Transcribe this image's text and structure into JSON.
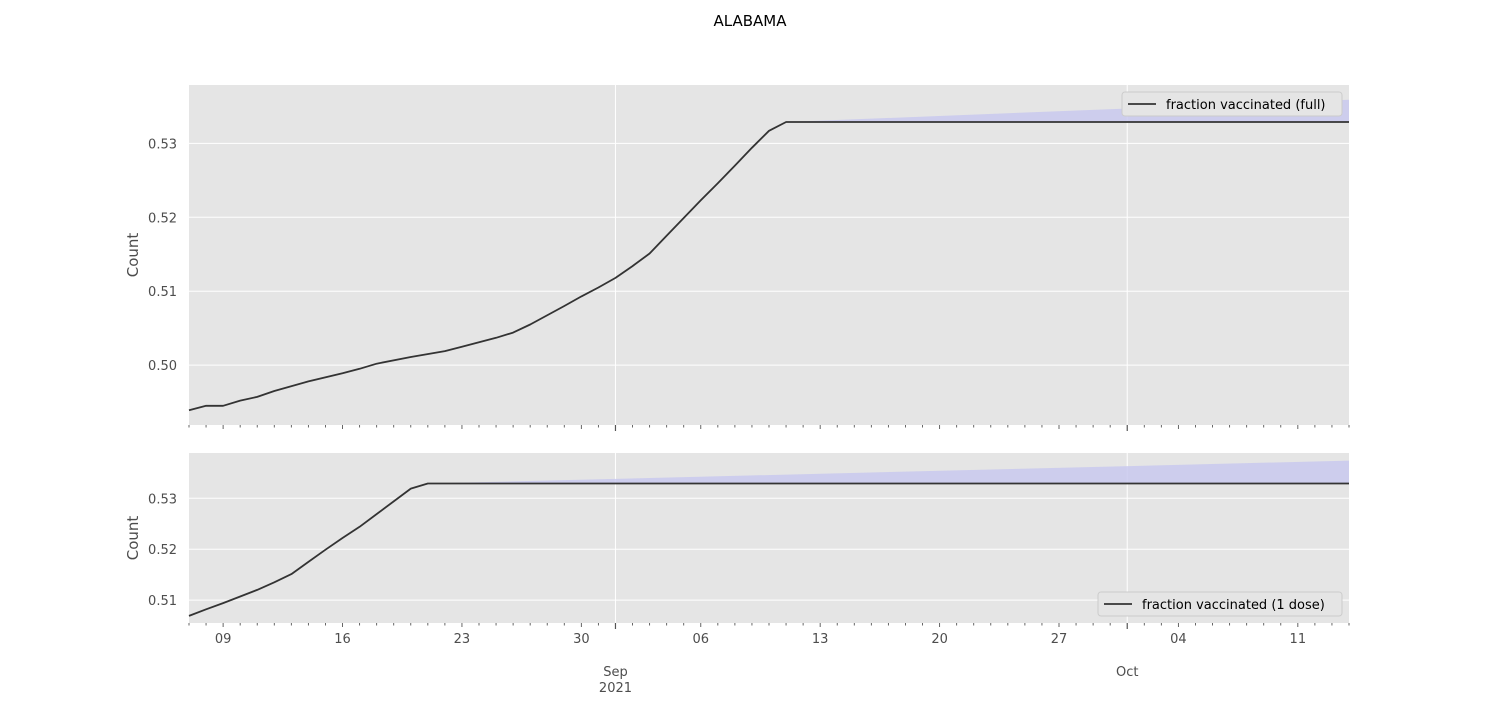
{
  "title": "ALABAMA",
  "colors": {
    "panel_background": "#e5e5e5",
    "grid": "#ffffff",
    "line": "#333333",
    "band": "#c9c9ee",
    "legend_background": "#e5e5e5",
    "legend_border": "#cccccc"
  },
  "chart_data": [
    {
      "type": "line",
      "ylabel": "Count",
      "ylim": [
        0.4919,
        0.5379
      ],
      "yticks": [
        0.5,
        0.51,
        0.52,
        0.53
      ],
      "ytick_labels": [
        "0.50",
        "0.51",
        "0.52",
        "0.53"
      ],
      "legend": {
        "entries": [
          "fraction vaccinated (full)"
        ],
        "placement": "top-right"
      },
      "grid": true,
      "series": [
        {
          "name": "fraction vaccinated (full)",
          "x": [
            "2021-08-07",
            "2021-08-08",
            "2021-08-09",
            "2021-08-10",
            "2021-08-11",
            "2021-08-12",
            "2021-08-14",
            "2021-08-16",
            "2021-08-17",
            "2021-08-18",
            "2021-08-20",
            "2021-08-22",
            "2021-08-23",
            "2021-08-24",
            "2021-08-25",
            "2021-08-26",
            "2021-08-27",
            "2021-08-29",
            "2021-08-30",
            "2021-08-31",
            "2021-09-01",
            "2021-09-02",
            "2021-09-03",
            "2021-09-04",
            "2021-09-05",
            "2021-09-06",
            "2021-09-07",
            "2021-09-08",
            "2021-09-09",
            "2021-09-10",
            "2021-09-11",
            "2021-10-14"
          ],
          "y": [
            0.4939,
            0.4945,
            0.4945,
            0.4952,
            0.4957,
            0.4965,
            0.4978,
            0.4989,
            0.4995,
            0.5002,
            0.5011,
            0.5019,
            0.5025,
            0.5031,
            0.5037,
            0.5044,
            0.5055,
            0.508,
            0.5093,
            0.5105,
            0.5118,
            0.5134,
            0.5151,
            0.5175,
            0.5199,
            0.5223,
            0.5246,
            0.527,
            0.5294,
            0.5317,
            0.5329,
            0.5329
          ]
        }
      ],
      "band": {
        "x": [
          "2021-09-11",
          "2021-10-14"
        ],
        "lower": [
          0.5329,
          0.5329
        ],
        "upper": [
          0.5329,
          0.5359
        ]
      }
    },
    {
      "type": "line",
      "ylabel": "Count",
      "ylim": [
        0.5055,
        0.5389
      ],
      "yticks": [
        0.51,
        0.52,
        0.53
      ],
      "ytick_labels": [
        "0.51",
        "0.52",
        "0.53"
      ],
      "legend": {
        "entries": [
          "fraction vaccinated (1 dose)"
        ],
        "placement": "bottom-right"
      },
      "grid": true,
      "series": [
        {
          "name": "fraction vaccinated (1 dose)",
          "x": [
            "2021-08-07",
            "2021-08-08",
            "2021-08-09",
            "2021-08-10",
            "2021-08-11",
            "2021-08-12",
            "2021-08-13",
            "2021-08-14",
            "2021-08-15",
            "2021-08-16",
            "2021-08-17",
            "2021-08-18",
            "2021-08-19",
            "2021-08-20",
            "2021-08-21",
            "2021-10-14"
          ],
          "y": [
            0.5069,
            0.5082,
            0.5094,
            0.5107,
            0.512,
            0.5135,
            0.5151,
            0.5175,
            0.5199,
            0.5222,
            0.5244,
            0.5269,
            0.5294,
            0.5319,
            0.5329,
            0.5329
          ]
        }
      ],
      "band": {
        "x": [
          "2021-08-21",
          "2021-10-14"
        ],
        "lower": [
          0.5329,
          0.5329
        ],
        "upper": [
          0.5329,
          0.5374
        ]
      }
    }
  ],
  "x_axis": {
    "range": [
      "2021-08-07",
      "2021-10-14"
    ],
    "minor_tick_labels": [
      {
        "date": "2021-08-09",
        "label": "09"
      },
      {
        "date": "2021-08-16",
        "label": "16"
      },
      {
        "date": "2021-08-23",
        "label": "23"
      },
      {
        "date": "2021-08-30",
        "label": "30"
      },
      {
        "date": "2021-09-06",
        "label": "06"
      },
      {
        "date": "2021-09-13",
        "label": "13"
      },
      {
        "date": "2021-09-20",
        "label": "20"
      },
      {
        "date": "2021-09-27",
        "label": "27"
      },
      {
        "date": "2021-10-04",
        "label": "04"
      },
      {
        "date": "2021-10-11",
        "label": "11"
      }
    ],
    "major_ticks": [
      {
        "date": "2021-09-01",
        "label": "Sep",
        "sublabel": "2021"
      },
      {
        "date": "2021-10-01",
        "label": "Oct",
        "sublabel": ""
      }
    ]
  }
}
